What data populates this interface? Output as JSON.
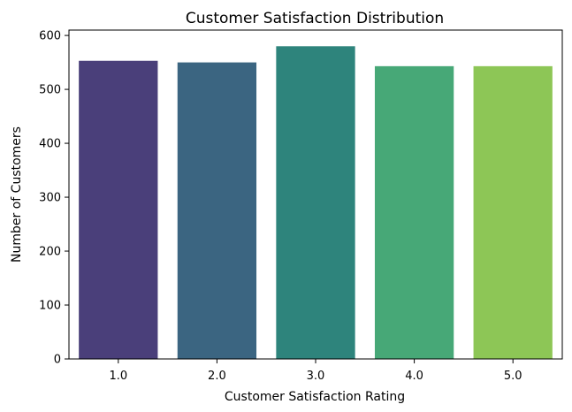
{
  "chart_data": {
    "type": "bar",
    "title": "Customer Satisfaction Distribution",
    "xlabel": "Customer Satisfaction Rating",
    "ylabel": "Number of Customers",
    "categories": [
      "1.0",
      "2.0",
      "3.0",
      "4.0",
      "5.0"
    ],
    "values": [
      553,
      550,
      580,
      543,
      543
    ],
    "colors": [
      "#4a3f7a",
      "#3b6581",
      "#2e847c",
      "#47a877",
      "#8dc656"
    ],
    "ylim": [
      0,
      610
    ],
    "yticks": [
      0,
      100,
      200,
      300,
      400,
      500,
      600
    ],
    "grid": false,
    "legend": false
  }
}
